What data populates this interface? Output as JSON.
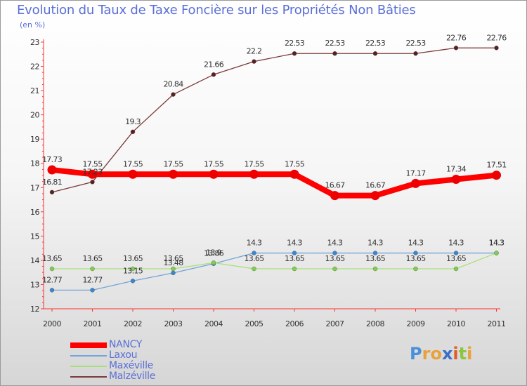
{
  "chart_data": {
    "type": "line",
    "title": "Evolution du Taux de Taxe Foncière sur les Propriétés Non Bâties",
    "unit_label": "(en %)",
    "xlabel": "",
    "ylabel": "",
    "ylim": [
      12,
      23
    ],
    "grid": false,
    "legend_position": "bottom-left",
    "categories": [
      "2000",
      "2001",
      "2002",
      "2003",
      "2004",
      "2005",
      "2006",
      "2007",
      "2008",
      "2009",
      "2010",
      "2011"
    ],
    "y_ticks": [
      "12",
      "13",
      "14",
      "15",
      "16",
      "17",
      "18",
      "19",
      "20",
      "21",
      "22",
      "23"
    ],
    "series": [
      {
        "name": "NANCY",
        "color": "#ff0000",
        "marker_color": "#ee0000",
        "values": [
          17.73,
          17.55,
          17.55,
          17.55,
          17.55,
          17.55,
          17.55,
          16.67,
          16.67,
          17.17,
          17.34,
          17.51
        ],
        "labels": [
          "17.73",
          "17.55",
          "17.55",
          "17.55",
          "17.55",
          "17.55",
          "17.55",
          "16.67",
          "16.67",
          "17.17",
          "17.34",
          "17.51"
        ]
      },
      {
        "name": "Laxou",
        "color": "#74a4d6",
        "marker_color": "#3a86d0",
        "values": [
          12.77,
          12.77,
          13.15,
          13.48,
          13.86,
          14.3,
          14.3,
          14.3,
          14.3,
          14.3,
          14.3,
          14.3
        ],
        "labels": [
          "12.77",
          "12.77",
          "13.15",
          "13.48",
          "13.86",
          "14.3",
          "14.3",
          "14.3",
          "14.3",
          "14.3",
          "14.3",
          "14.3"
        ]
      },
      {
        "name": "Maxéville",
        "color": "#a6e07a",
        "marker_color": "#7fd14a",
        "values": [
          13.65,
          13.65,
          13.65,
          13.65,
          13.9,
          13.65,
          13.65,
          13.65,
          13.65,
          13.65,
          13.65,
          14.3
        ],
        "labels": [
          "13.65",
          "13.65",
          "13.65",
          "13.65",
          "13.9",
          "13.65",
          "13.65",
          "13.65",
          "13.65",
          "13.65",
          "13.65",
          "14.3"
        ]
      },
      {
        "name": "Malzéville",
        "color": "#7a3b3b",
        "marker_color": "#5a1f1f",
        "values": [
          16.81,
          17.23,
          19.3,
          20.84,
          21.66,
          22.2,
          22.53,
          22.53,
          22.53,
          22.53,
          22.76,
          22.76
        ],
        "labels": [
          "16.81",
          "17.23",
          "19.3",
          "20.84",
          "21.66",
          "22.2",
          "22.53",
          "22.53",
          "22.53",
          "22.53",
          "22.76",
          "22.76"
        ]
      }
    ]
  },
  "brand": {
    "letters": [
      "P",
      "r",
      "o",
      "x",
      "i",
      "t",
      "i"
    ],
    "colors": [
      "#4a90d9",
      "#e8a23a",
      "#e8a23a",
      "#3a6fc8",
      "#e05c2a",
      "#8cc63f",
      "#e8a23a"
    ]
  }
}
